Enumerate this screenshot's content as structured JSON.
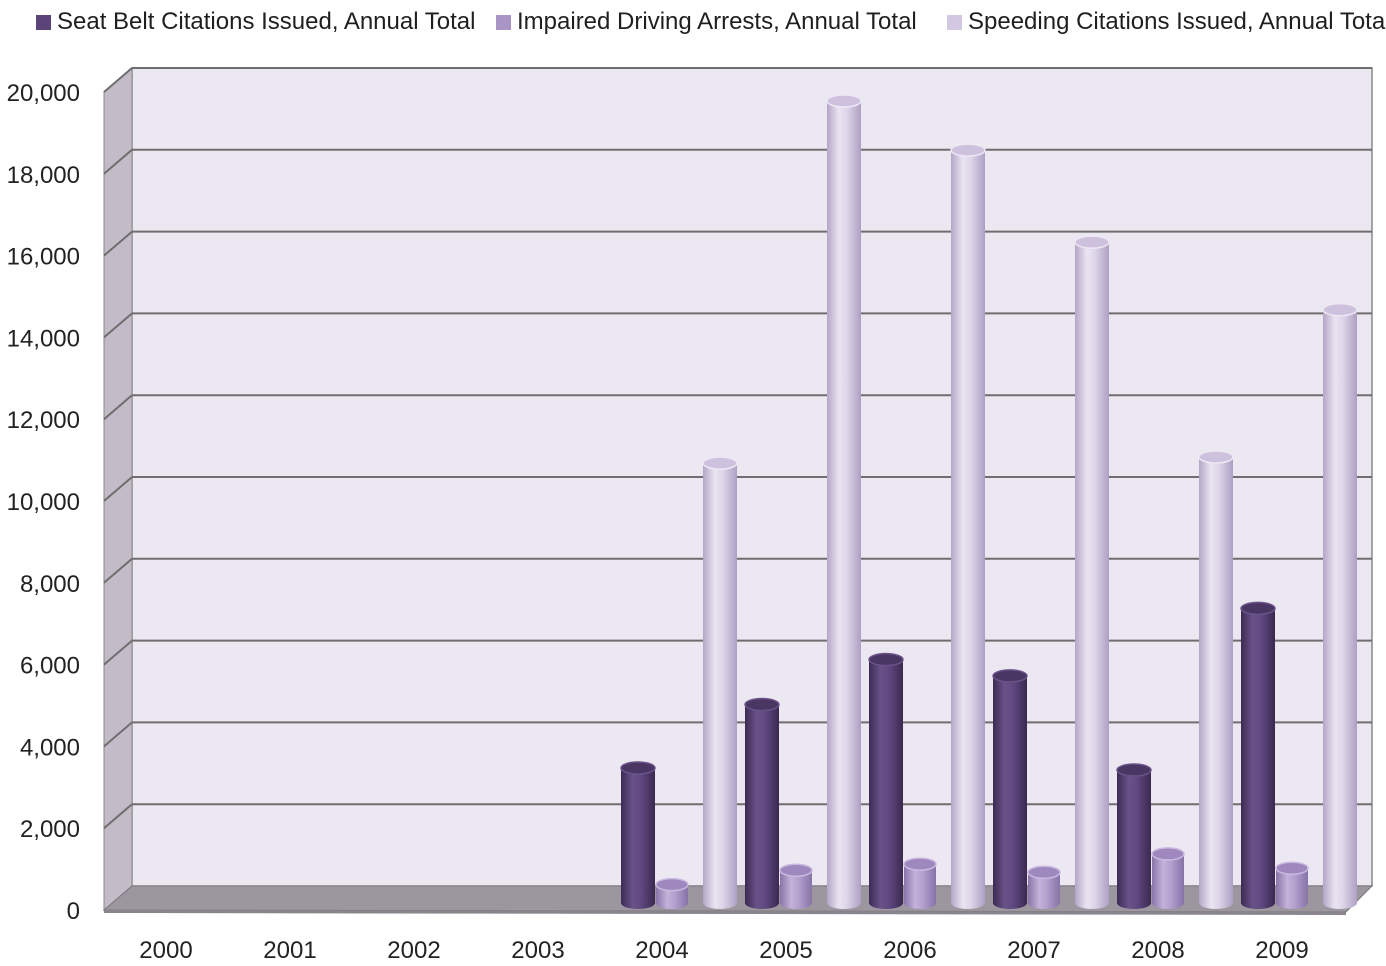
{
  "chart_data": {
    "type": "bar",
    "categories": [
      "2000",
      "2001",
      "2002",
      "2003",
      "2004",
      "2005",
      "2006",
      "2007",
      "2008",
      "2009"
    ],
    "series": [
      {
        "name": "Seat Belt Citations Issued, Annual Total",
        "color": "#5b4478",
        "values": [
          0,
          0,
          0,
          0,
          3300,
          4850,
          5950,
          5550,
          3250,
          7200
        ]
      },
      {
        "name": "Impaired Driving Arrests, Annual Total",
        "color": "#a994c6",
        "values": [
          0,
          0,
          0,
          0,
          450,
          800,
          950,
          750,
          1200,
          850
        ]
      },
      {
        "name": "Speeding Citations Issued, Annual Total",
        "color": "#d3c8e2",
        "values": [
          0,
          0,
          0,
          0,
          10750,
          19600,
          18400,
          16150,
          10900,
          14500
        ]
      }
    ],
    "ylim": [
      0,
      20000
    ],
    "yticks": [
      "0",
      "2,000",
      "4,000",
      "6,000",
      "8,000",
      "10,000",
      "12,000",
      "14,000",
      "16,000",
      "18,000",
      "20,000"
    ],
    "title": "",
    "xlabel": "",
    "ylabel": "",
    "legend_position": "top",
    "grid": true,
    "style": "3d-cylinder",
    "colors": {
      "wall": "#ece8f1",
      "side_wall": "#c3bcc8",
      "floor": "#9c979e",
      "gridline": "#6e6e6e"
    }
  }
}
